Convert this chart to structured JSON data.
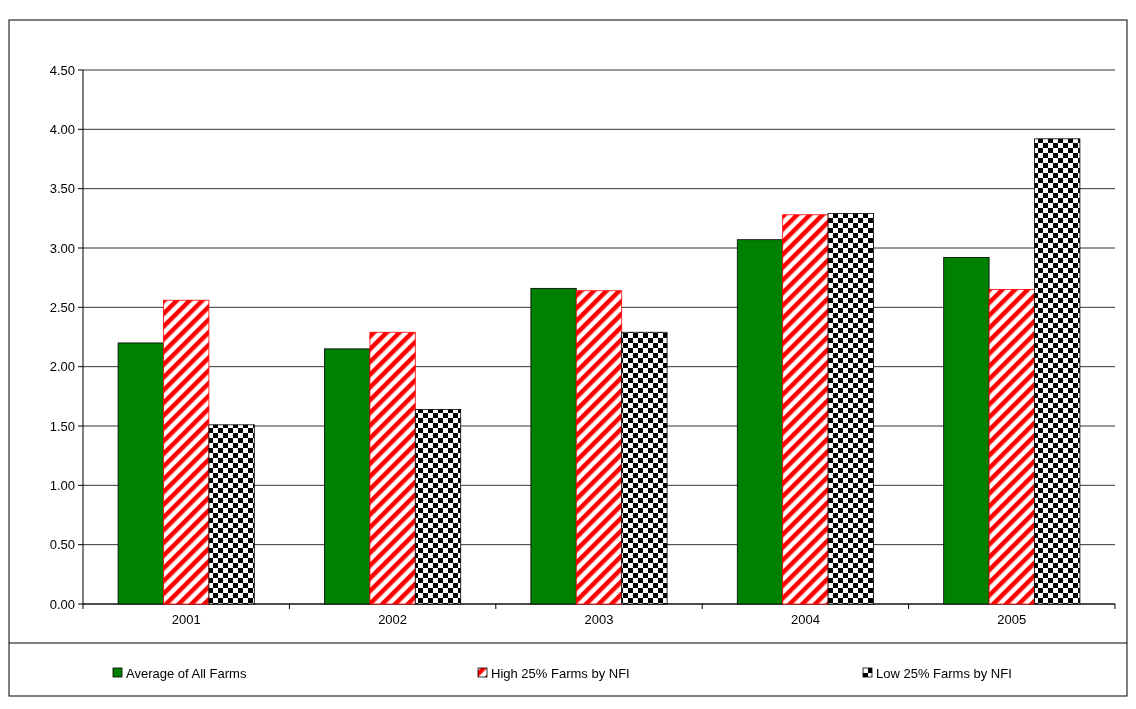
{
  "chart_data": {
    "type": "bar",
    "categories": [
      "2001",
      "2002",
      "2003",
      "2004",
      "2005"
    ],
    "series": [
      {
        "name": "Average of All Farms",
        "color": "#008000",
        "values": [
          2.2,
          2.15,
          2.66,
          3.07,
          2.92
        ]
      },
      {
        "name": "High 25% Farms by NFI",
        "color": "#ff0000",
        "values": [
          2.56,
          2.29,
          2.64,
          3.28,
          2.65
        ]
      },
      {
        "name": "Low 25% Farms by NFI",
        "color": "#000000",
        "values": [
          1.51,
          1.64,
          2.29,
          3.29,
          3.92
        ]
      }
    ],
    "ylim": [
      0,
      4.5
    ],
    "yticks": [
      {
        "value": 0,
        "label": "0.00"
      },
      {
        "value": 0.5,
        "label": "0.50"
      },
      {
        "value": 1,
        "label": "1.00"
      },
      {
        "value": 1.5,
        "label": "1.50"
      },
      {
        "value": 2,
        "label": "2.00"
      },
      {
        "value": 2.5,
        "label": "2.50"
      },
      {
        "value": 3,
        "label": "3.00"
      },
      {
        "value": 3.5,
        "label": "3.50"
      },
      {
        "value": 4,
        "label": "4.00"
      },
      {
        "value": 4.5,
        "label": "4.50"
      }
    ],
    "grid": "y",
    "legend": "bottom"
  }
}
